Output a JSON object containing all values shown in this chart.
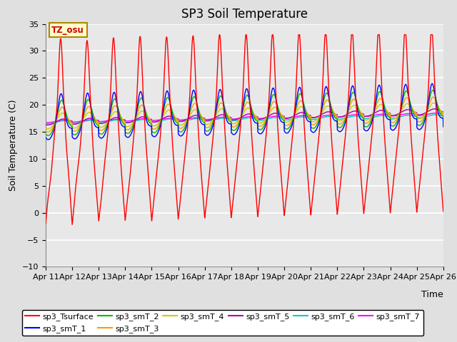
{
  "title": "SP3 Soil Temperature",
  "xlabel": "Time",
  "ylabel": "Soil Temperature (C)",
  "ylim": [
    -10,
    35
  ],
  "tz_label": "TZ_osu",
  "x_tick_labels": [
    "Apr 11",
    "Apr 12",
    "Apr 13",
    "Apr 14",
    "Apr 15",
    "Apr 16",
    "Apr 17",
    "Apr 18",
    "Apr 19",
    "Apr 20",
    "Apr 21",
    "Apr 22",
    "Apr 23",
    "Apr 24",
    "Apr 25",
    "Apr 26"
  ],
  "series_colors": {
    "sp3_Tsurface": "#FF0000",
    "sp3_smT_1": "#0000FF",
    "sp3_smT_2": "#00BB00",
    "sp3_smT_3": "#FF9900",
    "sp3_smT_4": "#CCCC00",
    "sp3_smT_5": "#AA00AA",
    "sp3_smT_6": "#00CCCC",
    "sp3_smT_7": "#FF00FF"
  },
  "background_color": "#E0E0E0",
  "plot_bg_color": "#E8E8E8",
  "grid_color": "#FFFFFF",
  "title_fontsize": 12,
  "axis_fontsize": 9,
  "tick_fontsize": 8,
  "legend_fontsize": 8
}
